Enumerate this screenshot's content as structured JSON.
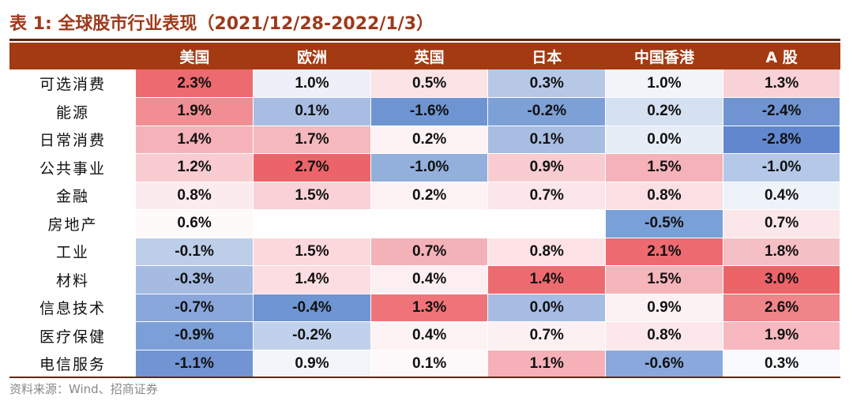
{
  "title": "表 1:  全球股市行业表现（2021/12/28-2022/1/3）",
  "source": "资料来源：Wind、招商证券",
  "columns": [
    "",
    "美国",
    "欧洲",
    "英国",
    "日本",
    "中国香港",
    "A 股"
  ],
  "rows": [
    {
      "label": "可选消费",
      "values": [
        "2.3%",
        "1.0%",
        "0.5%",
        "0.3%",
        "1.0%",
        "1.3%"
      ]
    },
    {
      "label": "能源",
      "values": [
        "1.9%",
        "0.1%",
        "-1.6%",
        "-0.2%",
        "0.2%",
        "-2.4%"
      ]
    },
    {
      "label": "日常消费",
      "values": [
        "1.4%",
        "1.7%",
        "0.2%",
        "0.1%",
        "0.0%",
        "-2.8%"
      ]
    },
    {
      "label": "公共事业",
      "values": [
        "1.2%",
        "2.7%",
        "-1.0%",
        "0.9%",
        "1.5%",
        "-1.0%"
      ]
    },
    {
      "label": "金融",
      "values": [
        "0.8%",
        "1.5%",
        "0.2%",
        "0.7%",
        "0.8%",
        "0.4%"
      ]
    },
    {
      "label": "房地产",
      "values": [
        "0.6%",
        "",
        "",
        "",
        "-0.5%",
        "0.7%"
      ]
    },
    {
      "label": "工业",
      "values": [
        "-0.1%",
        "1.5%",
        "0.7%",
        "0.8%",
        "2.1%",
        "1.8%"
      ]
    },
    {
      "label": "材料",
      "values": [
        "-0.3%",
        "1.4%",
        "0.4%",
        "1.4%",
        "1.5%",
        "3.0%"
      ]
    },
    {
      "label": "信息技术",
      "values": [
        "-0.7%",
        "-0.4%",
        "1.3%",
        "0.0%",
        "0.9%",
        "2.6%"
      ]
    },
    {
      "label": "医疗保健",
      "values": [
        "-0.9%",
        "-0.2%",
        "0.4%",
        "0.7%",
        "0.8%",
        "1.9%"
      ]
    },
    {
      "label": "电信服务",
      "values": [
        "-1.1%",
        "0.9%",
        "0.1%",
        "1.1%",
        "-0.6%",
        "0.3%"
      ]
    }
  ],
  "colors": {
    "header_bg": "#a33a12",
    "title": "#9c3a1c",
    "cells": [
      [
        "#ec6a70",
        "#edf0f8",
        "#fbe3e6",
        "#b6c8e6",
        "#f2f4fa",
        "#f8d2d7"
      ],
      [
        "#f08e93",
        "#a9bde2",
        "#6e95d2",
        "#7da0d6",
        "#d5e0f1",
        "#6f94d1"
      ],
      [
        "#f5b2b8",
        "#f5b8bd",
        "#fdf3f4",
        "#a8bde2",
        "#e6edf7",
        "#6287cf"
      ],
      [
        "#f8ccd1",
        "#ec6469",
        "#93afdc",
        "#f8ccd1",
        "#f5b3b9",
        "#b5c8e8"
      ],
      [
        "#fcebee",
        "#f8d2d7",
        "#fdf3f4",
        "#fbe6e9",
        "#fae0e3",
        "#eef2f9"
      ],
      [
        "#fefafa",
        "#ffffff",
        "#ffffff",
        "#ffffff",
        "#7aa0d8",
        "#fbe6e9"
      ],
      [
        "#bdcee9",
        "#fcd8dd",
        "#f3b2b8",
        "#fde3e6",
        "#ed6b70",
        "#f5c0c5"
      ],
      [
        "#a5bbe2",
        "#fcdde1",
        "#fdeff1",
        "#ed6b70",
        "#f5b5bb",
        "#ec6368"
      ],
      [
        "#89a7da",
        "#6f95d2",
        "#ef7479",
        "#a6bce3",
        "#fcf2f3",
        "#ef8489"
      ],
      [
        "#7c9fd7",
        "#c1d1ec",
        "#fdf3f4",
        "#fcf0f2",
        "#fce7ea",
        "#f7b9bf"
      ],
      [
        "#7294d2",
        "#f3f5fb",
        "#fdf8f9",
        "#f5b1b7",
        "#8aa8dc",
        "#f8fafd"
      ]
    ]
  }
}
